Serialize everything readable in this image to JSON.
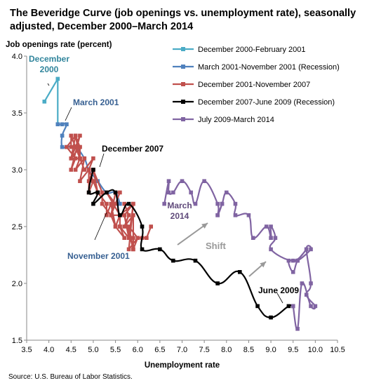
{
  "title": "The Beveridge Curve (job openings vs. unemployment rate), seasonally adjusted, December 2000–March 2014",
  "source": "Source: U.S. Bureau of Labor Statistics.",
  "chart_data": {
    "type": "line",
    "xlabel": "Unemployment rate",
    "ylabel": "Job openings rate (percent)",
    "xlim": [
      3.5,
      10.5
    ],
    "ylim": [
      1.5,
      4.0
    ],
    "x_ticks": [
      "3.5",
      "4.0",
      "4.5",
      "5.0",
      "5.5",
      "6.0",
      "6.5",
      "7.0",
      "7.5",
      "8.0",
      "8.5",
      "9.0",
      "9.5",
      "10.0",
      "10.5"
    ],
    "y_ticks": [
      "1.5",
      "2.0",
      "2.5",
      "3.0",
      "3.5",
      "4.0"
    ],
    "legend_position": "top-right",
    "series": [
      {
        "name": "December 2000-February 2001",
        "color": "#4bacc6",
        "smooth": false,
        "points": [
          [
            3.9,
            3.6
          ],
          [
            4.2,
            3.8
          ],
          [
            4.2,
            3.4
          ]
        ]
      },
      {
        "name": "March 2001-November 2001 (Recession)",
        "color": "#4f81bd",
        "smooth": true,
        "points": [
          [
            4.2,
            3.4
          ],
          [
            4.3,
            3.4
          ],
          [
            4.4,
            3.4
          ],
          [
            4.3,
            3.3
          ],
          [
            4.3,
            3.2
          ],
          [
            4.4,
            3.2
          ],
          [
            4.6,
            3.2
          ],
          [
            4.8,
            3.1
          ],
          [
            4.9,
            3.0
          ],
          [
            5.1,
            2.9
          ],
          [
            5.3,
            2.8
          ],
          [
            5.5,
            2.8
          ],
          [
            5.6,
            2.7
          ]
        ]
      },
      {
        "name": "December 2001-November 2007",
        "color": "#c0504d",
        "smooth": false,
        "points": [
          [
            5.7,
            2.7
          ],
          [
            5.8,
            2.6
          ],
          [
            5.7,
            2.5
          ],
          [
            5.9,
            2.6
          ],
          [
            5.9,
            2.4
          ],
          [
            5.9,
            2.3
          ],
          [
            5.8,
            2.5
          ],
          [
            6.0,
            2.4
          ],
          [
            5.8,
            2.3
          ],
          [
            5.9,
            2.7
          ],
          [
            5.6,
            2.6
          ],
          [
            5.6,
            2.5
          ],
          [
            5.8,
            2.4
          ],
          [
            5.9,
            2.7
          ],
          [
            5.7,
            2.6
          ],
          [
            5.4,
            2.6
          ],
          [
            5.5,
            2.8
          ],
          [
            5.6,
            2.8
          ],
          [
            5.4,
            2.6
          ],
          [
            5.5,
            2.5
          ],
          [
            5.4,
            2.7
          ],
          [
            5.3,
            2.6
          ],
          [
            5.3,
            2.7
          ],
          [
            5.1,
            2.8
          ],
          [
            5.0,
            3.0
          ],
          [
            4.9,
            2.9
          ],
          [
            5.0,
            2.9
          ],
          [
            4.9,
            3.0
          ],
          [
            5.0,
            3.1
          ],
          [
            4.8,
            3.0
          ],
          [
            4.7,
            3.1
          ],
          [
            4.7,
            3.2
          ],
          [
            4.6,
            3.3
          ],
          [
            4.7,
            3.1
          ],
          [
            4.6,
            3.2
          ],
          [
            4.5,
            3.1
          ],
          [
            4.7,
            3.2
          ],
          [
            4.5,
            3.2
          ],
          [
            4.5,
            3.3
          ],
          [
            4.6,
            3.2
          ],
          [
            4.7,
            3.3
          ],
          [
            4.5,
            3.0
          ],
          [
            4.6,
            3.1
          ],
          [
            4.4,
            3.2
          ],
          [
            4.6,
            3.3
          ],
          [
            4.5,
            3.1
          ],
          [
            4.7,
            3.1
          ],
          [
            4.6,
            3.0
          ],
          [
            4.8,
            3.1
          ],
          [
            4.7,
            2.9
          ],
          [
            4.9,
            3.0
          ],
          [
            4.9,
            2.8
          ],
          [
            5.0,
            2.9
          ],
          [
            5.1,
            2.8
          ],
          [
            5.0,
            3.0
          ],
          [
            5.2,
            2.8
          ],
          [
            5.2,
            2.7
          ],
          [
            5.4,
            2.6
          ],
          [
            5.5,
            2.7
          ],
          [
            5.3,
            2.8
          ],
          [
            5.6,
            2.6
          ],
          [
            5.5,
            2.5
          ],
          [
            5.7,
            2.4
          ],
          [
            5.6,
            2.5
          ],
          [
            5.8,
            2.4
          ],
          [
            5.7,
            2.6
          ],
          [
            5.9,
            2.3
          ],
          [
            6.0,
            2.4
          ],
          [
            6.1,
            2.4
          ],
          [
            6.2,
            2.4
          ],
          [
            6.3,
            2.5
          ]
        ]
      },
      {
        "name": "December 2007-June 2009 (Recession)",
        "color": "#000000",
        "smooth": true,
        "points": [
          [
            5.0,
            3.0
          ],
          [
            4.9,
            2.8
          ],
          [
            5.1,
            2.8
          ],
          [
            5.0,
            2.7
          ],
          [
            5.3,
            2.8
          ],
          [
            5.5,
            2.8
          ],
          [
            5.6,
            2.6
          ],
          [
            5.8,
            2.7
          ],
          [
            6.1,
            2.5
          ],
          [
            6.1,
            2.3
          ],
          [
            6.5,
            2.3
          ],
          [
            6.8,
            2.2
          ],
          [
            7.3,
            2.2
          ],
          [
            7.8,
            2.0
          ],
          [
            8.3,
            2.1
          ],
          [
            8.7,
            1.8
          ],
          [
            9.0,
            1.7
          ],
          [
            9.4,
            1.8
          ],
          [
            9.5,
            1.8
          ]
        ]
      },
      {
        "name": "July 2009-March 2014",
        "color": "#8064a2",
        "smooth": true,
        "points": [
          [
            9.5,
            1.8
          ],
          [
            9.6,
            1.6
          ],
          [
            9.7,
            2.0
          ],
          [
            9.9,
            1.8
          ],
          [
            10.0,
            1.8
          ],
          [
            9.8,
            1.9
          ],
          [
            9.9,
            2.0
          ],
          [
            9.8,
            2.3
          ],
          [
            9.9,
            2.3
          ],
          [
            9.6,
            2.2
          ],
          [
            9.4,
            2.2
          ],
          [
            9.5,
            2.1
          ],
          [
            9.6,
            2.2
          ],
          [
            9.8,
            2.3
          ],
          [
            9.5,
            2.2
          ],
          [
            9.0,
            2.3
          ],
          [
            9.1,
            2.4
          ],
          [
            9.0,
            2.5
          ],
          [
            9.0,
            2.4
          ],
          [
            8.9,
            2.5
          ],
          [
            8.6,
            2.4
          ],
          [
            8.5,
            2.6
          ],
          [
            8.2,
            2.6
          ],
          [
            8.2,
            2.7
          ],
          [
            8.0,
            2.8
          ],
          [
            7.9,
            2.7
          ],
          [
            7.8,
            2.6
          ],
          [
            7.9,
            2.7
          ],
          [
            7.8,
            2.6
          ],
          [
            7.8,
            2.7
          ],
          [
            7.5,
            2.9
          ],
          [
            7.3,
            2.7
          ],
          [
            7.2,
            2.8
          ],
          [
            7.0,
            2.9
          ],
          [
            6.8,
            2.8
          ],
          [
            6.7,
            2.8
          ],
          [
            6.7,
            2.9
          ],
          [
            6.6,
            2.7
          ]
        ]
      }
    ],
    "annotations": [
      "December\n2000",
      "March 2001",
      "December 2007",
      "November 2001",
      "March\n2014",
      "Shift",
      "June 2009"
    ]
  }
}
